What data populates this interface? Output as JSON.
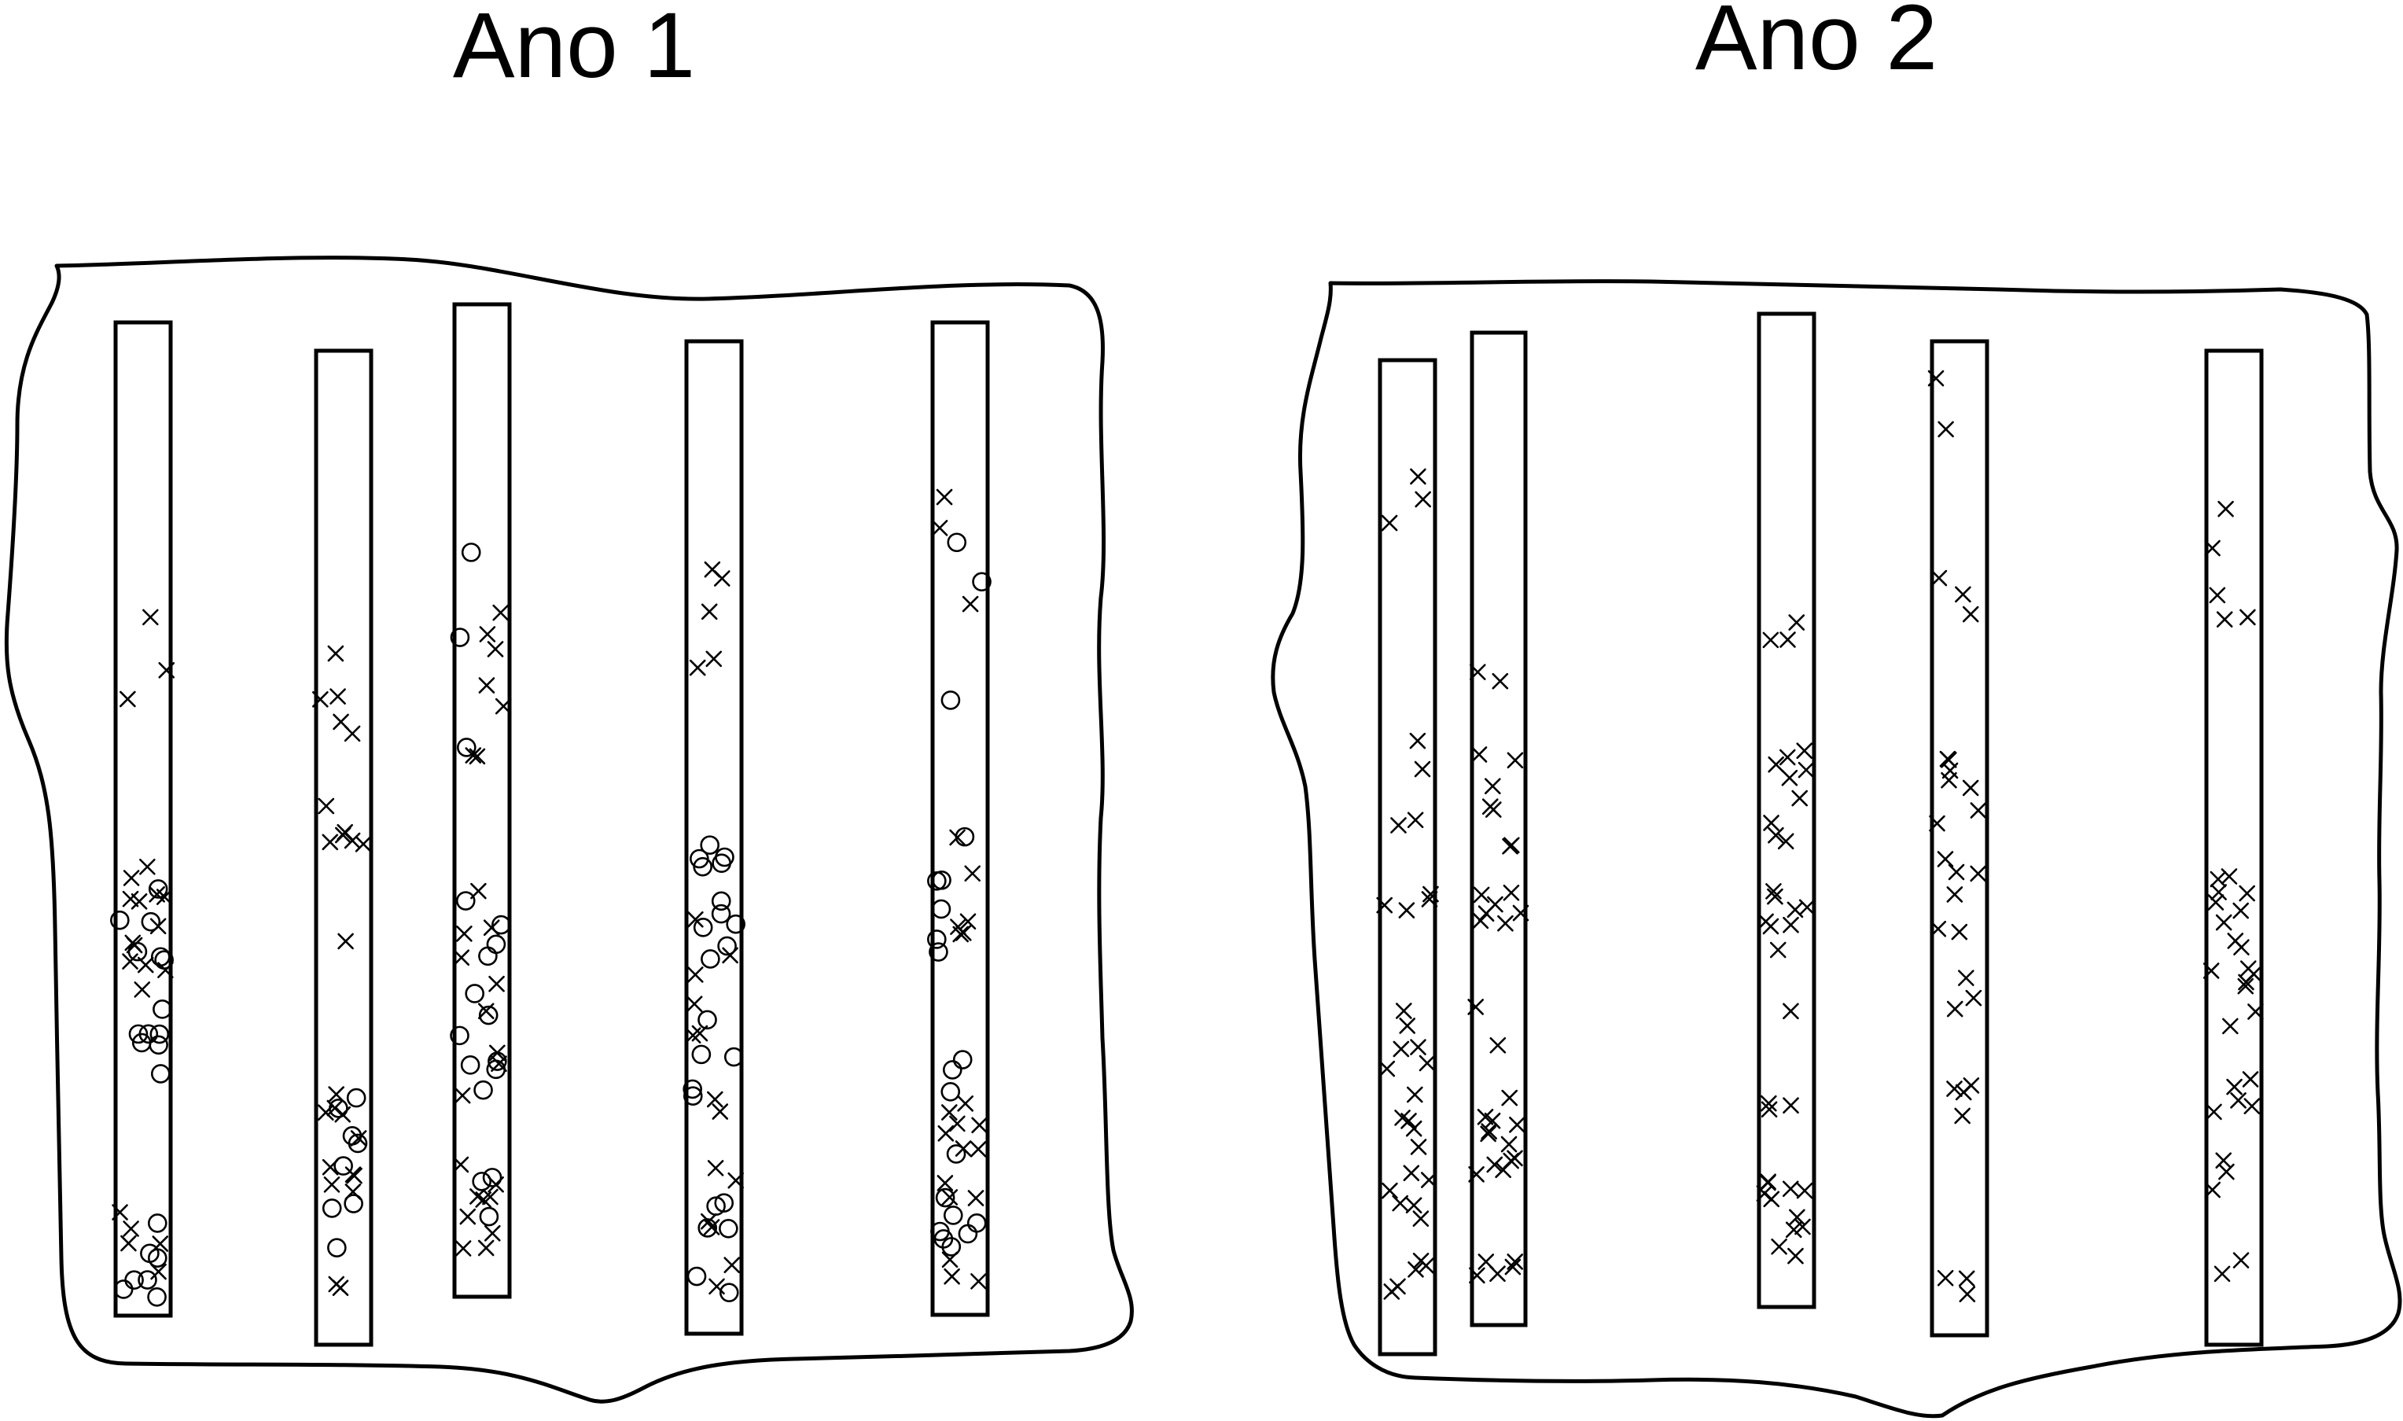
{
  "panels": [
    {
      "title": "Ano 1"
    },
    {
      "title": "Ano 2"
    }
  ],
  "legend_icons": [
    "x-mark-icon",
    "circle-mark-icon"
  ],
  "colors": {
    "ink": "#000000",
    "background": "#ffffff"
  }
}
